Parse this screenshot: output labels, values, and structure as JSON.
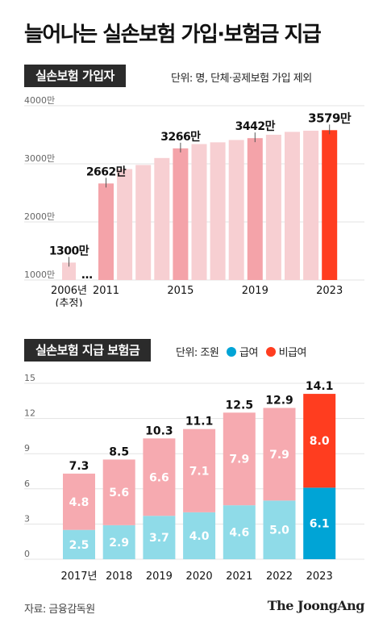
{
  "title": "늘어나는 실손보험 가입·보험금 지급",
  "section1": {
    "header": "실손보험 가입자",
    "unit_note": "단위: 명, 단체·공제보험 가입 제외"
  },
  "section2": {
    "header": "실손보험 지급 보험금",
    "unit_prefix": "단위: 조원",
    "legend_paid": "급여",
    "legend_nonpaid": "비급여"
  },
  "colors": {
    "pink_light": "#f7cfd2",
    "pink_mid": "#f4a3a9",
    "red": "#ff3d1f",
    "blue_light": "#8fdbe8",
    "blue": "#00a4d6",
    "pink_stack": "#f6aab0"
  },
  "source": "자료: 금융감독원",
  "brand": "The JoongAng",
  "chart_data": [
    {
      "type": "bar",
      "title": "실손보험 가입자",
      "unit": "명",
      "ylim": [
        1000,
        4000
      ],
      "y_ticks": [
        "1000만",
        "2000만",
        "3000만",
        "4000만"
      ],
      "y_tick_values": [
        1000,
        2000,
        3000,
        4000
      ],
      "gap_marker": "…",
      "categories": [
        "2006",
        "2011",
        "2012",
        "2013",
        "2014",
        "2015",
        "2016",
        "2017",
        "2018",
        "2019",
        "2020",
        "2021",
        "2022",
        "2023"
      ],
      "x_tick_labels": [
        {
          "category": "2006",
          "label": "2006년",
          "sub": "(추정)"
        },
        {
          "category": "2011",
          "label": "2011"
        },
        {
          "category": "2015",
          "label": "2015"
        },
        {
          "category": "2019",
          "label": "2019"
        },
        {
          "category": "2023",
          "label": "2023"
        }
      ],
      "values": [
        1300,
        2662,
        2910,
        2980,
        3100,
        3266,
        3340,
        3370,
        3410,
        3442,
        3500,
        3550,
        3570,
        3579
      ],
      "data_labels": [
        {
          "category": "2006",
          "text": "1300만"
        },
        {
          "category": "2011",
          "text": "2662만"
        },
        {
          "category": "2015",
          "text": "3266만"
        },
        {
          "category": "2019",
          "text": "3442만"
        },
        {
          "category": "2023",
          "text": "3579만"
        }
      ],
      "highlight": "2023"
    },
    {
      "type": "bar",
      "stacked": true,
      "title": "실손보험 지급 보험금",
      "unit": "조원",
      "ylim": [
        0,
        15
      ],
      "y_ticks": [
        "0",
        "3",
        "6",
        "9",
        "12",
        "15"
      ],
      "y_tick_values": [
        0,
        3,
        6,
        9,
        12,
        15
      ],
      "categories": [
        "2017년",
        "2018",
        "2019",
        "2020",
        "2021",
        "2022",
        "2023"
      ],
      "series": [
        {
          "name": "급여",
          "values": [
            2.5,
            2.9,
            3.7,
            4.0,
            4.6,
            5.0,
            6.1
          ],
          "labels": [
            "2.5",
            "2.9",
            "3.7",
            "4.0",
            "4.6",
            "5.0",
            "6.1"
          ]
        },
        {
          "name": "비급여",
          "values": [
            4.8,
            5.6,
            6.6,
            7.1,
            7.9,
            7.9,
            8.0
          ],
          "labels": [
            "4.8",
            "5.6",
            "6.6",
            "7.1",
            "7.9",
            "7.9",
            "8.0"
          ]
        }
      ],
      "totals": [
        "7.3",
        "8.5",
        "10.3",
        "11.1",
        "12.5",
        "12.9",
        "14.1"
      ],
      "highlight": "2023"
    }
  ]
}
